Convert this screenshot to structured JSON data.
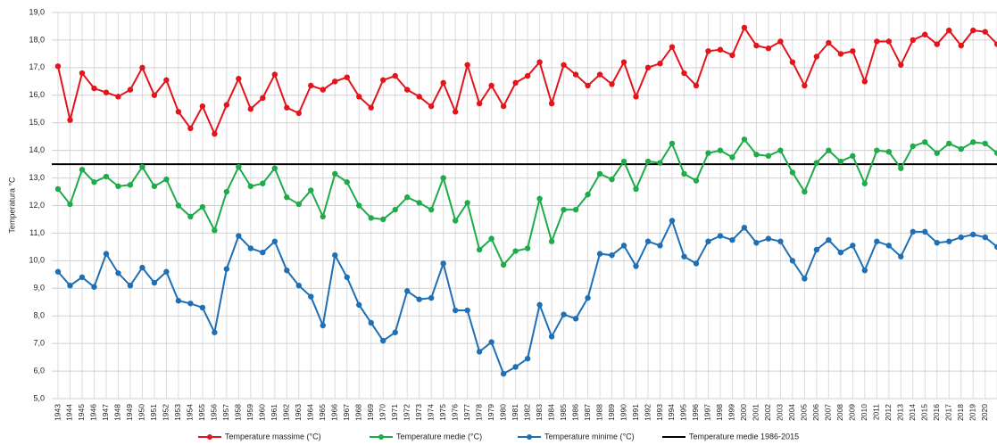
{
  "chart_data": {
    "type": "line",
    "y_label": "Temperatura °C",
    "categories": [
      "1943",
      "1944",
      "1945",
      "1946",
      "1947",
      "1948",
      "1949",
      "1950",
      "1951",
      "1952",
      "1953",
      "1954",
      "1955",
      "1956",
      "1957",
      "1958",
      "1959",
      "1960",
      "1961",
      "1962",
      "1963",
      "1964",
      "1965",
      "1966",
      "1967",
      "1968",
      "1969",
      "1970",
      "1971",
      "1972",
      "1973",
      "1974",
      "1975",
      "1976",
      "1977",
      "1978",
      "1979",
      "1980",
      "1981",
      "1982",
      "1983",
      "1984",
      "1985",
      "1986",
      "1987",
      "1988",
      "1989",
      "1990",
      "1991",
      "1992",
      "1993",
      "1994",
      "1995",
      "1996",
      "1997",
      "1998",
      "1999",
      "2000",
      "2001",
      "2002",
      "2003",
      "2004",
      "2005",
      "2006",
      "2007",
      "2008",
      "2009",
      "2010",
      "2011",
      "2012",
      "2013",
      "2014",
      "2015",
      "2016",
      "2017",
      "2018",
      "2019",
      "2020",
      null
    ],
    "series": [
      {
        "name": "Temperature massime (°C)",
        "color": "#e3141b",
        "values": [
          17.05,
          15.1,
          16.8,
          16.25,
          16.1,
          15.95,
          16.2,
          17.0,
          16.0,
          16.55,
          15.4,
          14.8,
          15.6,
          14.6,
          15.65,
          16.6,
          15.5,
          15.9,
          16.75,
          15.55,
          15.35,
          16.35,
          16.2,
          16.5,
          16.65,
          15.95,
          15.55,
          16.55,
          16.7,
          16.2,
          15.95,
          15.6,
          16.45,
          15.4,
          17.1,
          15.7,
          16.35,
          15.6,
          16.45,
          16.7,
          17.2,
          15.7,
          17.1,
          16.75,
          16.35,
          16.75,
          16.4,
          17.2,
          15.95,
          17.0,
          17.15,
          17.75,
          16.8,
          16.35,
          17.6,
          17.65,
          17.45,
          18.45,
          17.8,
          17.7,
          17.95,
          17.2,
          16.35,
          17.4,
          17.9,
          17.5,
          17.6,
          16.5,
          17.95,
          17.95,
          17.1,
          18.0,
          18.2,
          17.85,
          18.35,
          17.8,
          18.35,
          18.3,
          17.85
        ]
      },
      {
        "name": "Temperature medie (°C)",
        "color": "#1fab4a",
        "values": [
          12.6,
          12.05,
          13.3,
          12.85,
          13.05,
          12.7,
          12.75,
          13.4,
          12.7,
          12.95,
          12.0,
          11.6,
          11.95,
          11.1,
          12.5,
          13.4,
          12.7,
          12.8,
          13.35,
          12.3,
          12.05,
          12.55,
          11.6,
          13.15,
          12.85,
          12.0,
          11.55,
          11.5,
          11.85,
          12.3,
          12.1,
          11.85,
          13.0,
          11.45,
          12.1,
          10.4,
          10.8,
          9.85,
          10.35,
          10.45,
          12.25,
          10.7,
          11.85,
          11.85,
          12.4,
          13.15,
          12.95,
          13.6,
          12.6,
          13.6,
          13.55,
          14.25,
          13.15,
          12.9,
          13.9,
          14.0,
          13.75,
          14.4,
          13.85,
          13.8,
          14.0,
          13.2,
          12.5,
          13.55,
          14.0,
          13.6,
          13.8,
          12.8,
          14.0,
          13.95,
          13.35,
          14.15,
          14.3,
          13.9,
          14.25,
          14.05,
          14.3,
          14.25,
          13.9
        ]
      },
      {
        "name": "Temperature minime (°C)",
        "color": "#1f6fb4",
        "values": [
          9.6,
          9.1,
          9.4,
          9.05,
          10.25,
          9.55,
          9.1,
          9.75,
          9.2,
          9.6,
          8.55,
          8.45,
          8.3,
          7.4,
          9.7,
          10.9,
          10.45,
          10.3,
          10.7,
          9.65,
          9.1,
          8.7,
          7.65,
          10.2,
          9.4,
          8.4,
          7.75,
          7.1,
          7.4,
          8.9,
          8.6,
          8.65,
          9.9,
          8.2,
          8.2,
          6.7,
          7.05,
          5.9,
          6.15,
          6.45,
          8.4,
          7.25,
          8.05,
          7.9,
          8.65,
          10.25,
          10.2,
          10.55,
          9.8,
          10.7,
          10.55,
          11.45,
          10.15,
          9.9,
          10.7,
          10.9,
          10.75,
          11.2,
          10.65,
          10.8,
          10.7,
          10.0,
          9.35,
          10.4,
          10.75,
          10.3,
          10.55,
          9.65,
          10.7,
          10.55,
          10.15,
          11.05,
          11.05,
          10.65,
          10.7,
          10.85,
          10.95,
          10.85,
          10.5
        ]
      }
    ],
    "reference_line": {
      "name": "Temperature medie 1986-2015",
      "value": 13.5,
      "color": "#000000"
    },
    "ylim": [
      5,
      19
    ],
    "yticks": [
      {
        "value": 5,
        "label": "5,0"
      },
      {
        "value": 6,
        "label": "6,0"
      },
      {
        "value": 7,
        "label": "7,0"
      },
      {
        "value": 8,
        "label": "8,0"
      },
      {
        "value": 9,
        "label": "9,0"
      },
      {
        "value": 10,
        "label": "10,0"
      },
      {
        "value": 11,
        "label": "11,0"
      },
      {
        "value": 12,
        "label": "12,0"
      },
      {
        "value": 13,
        "label": "13,0"
      },
      {
        "value": 14,
        "label": "14,0"
      },
      {
        "value": 15,
        "label": "15,0"
      },
      {
        "value": 16,
        "label": "16,0"
      },
      {
        "value": 17,
        "label": "17,0"
      },
      {
        "value": 18,
        "label": "18,0"
      },
      {
        "value": 19,
        "label": "19,0"
      }
    ],
    "grid": true,
    "legend": "bottom"
  }
}
